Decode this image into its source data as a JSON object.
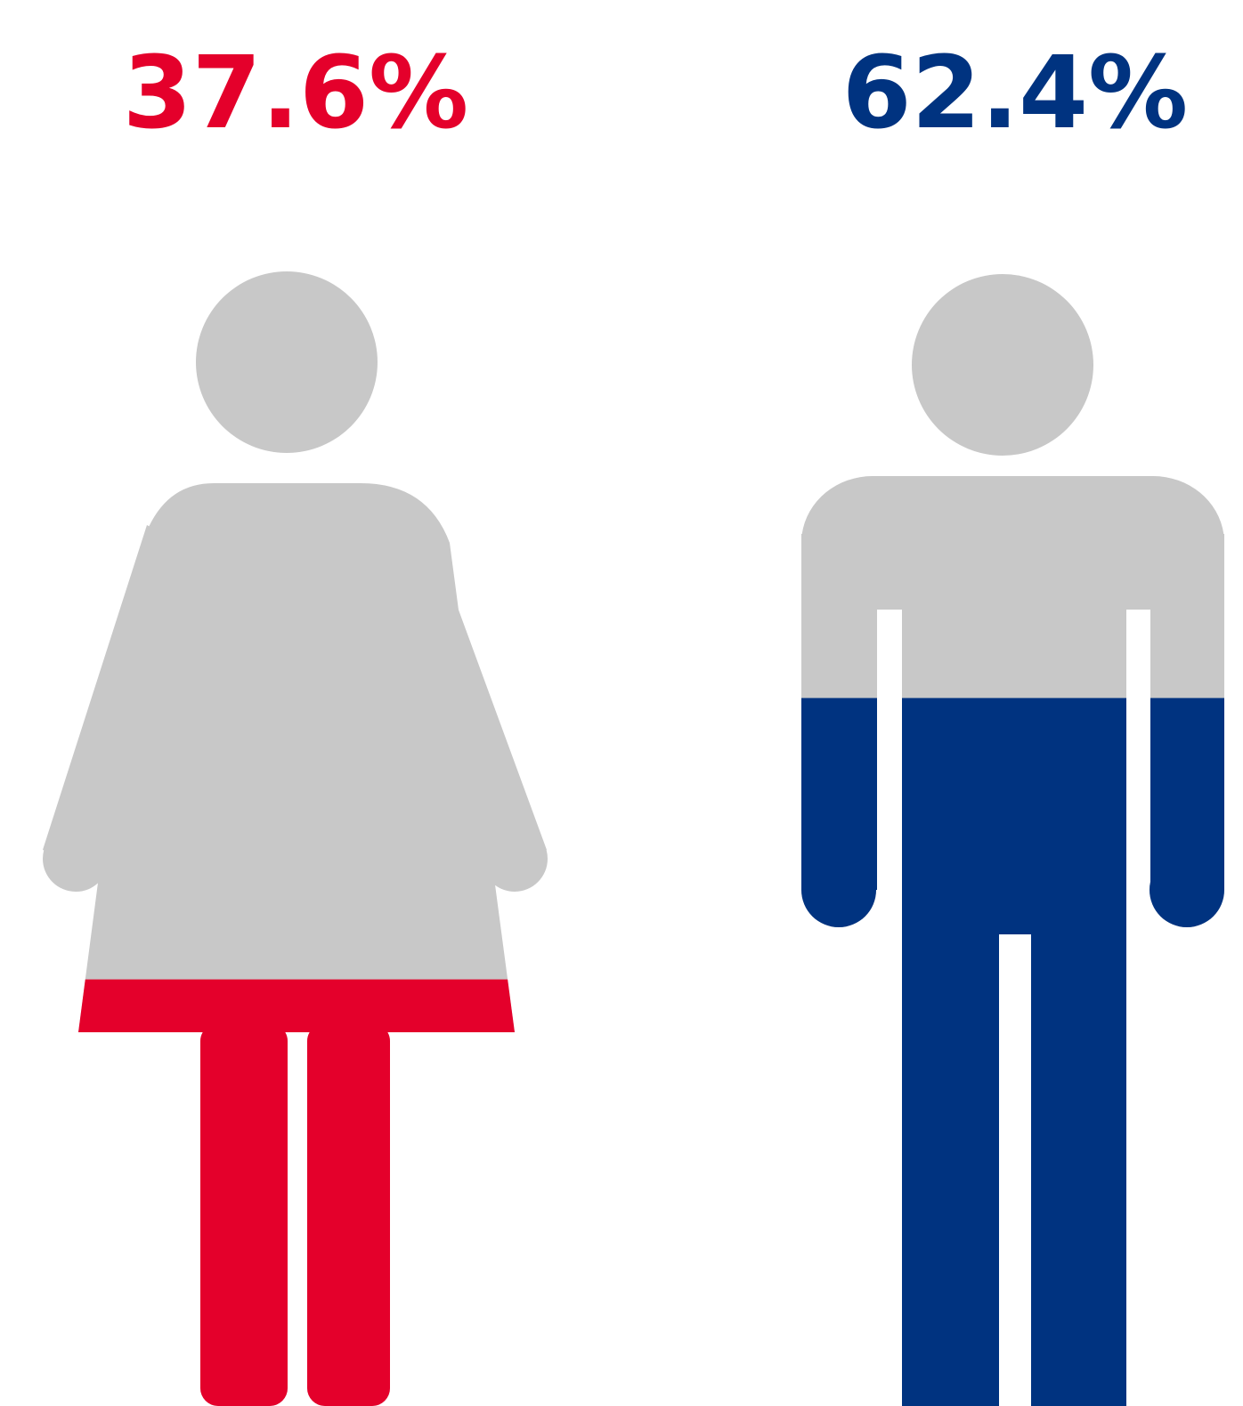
{
  "chart_data": {
    "type": "pictograph",
    "values": [
      37.6,
      62.4
    ],
    "value_labels": [
      "37.6%",
      "62.4%"
    ],
    "colors": [
      "#e4002b",
      "#003380"
    ],
    "ylim": [
      0,
      100
    ]
  }
}
